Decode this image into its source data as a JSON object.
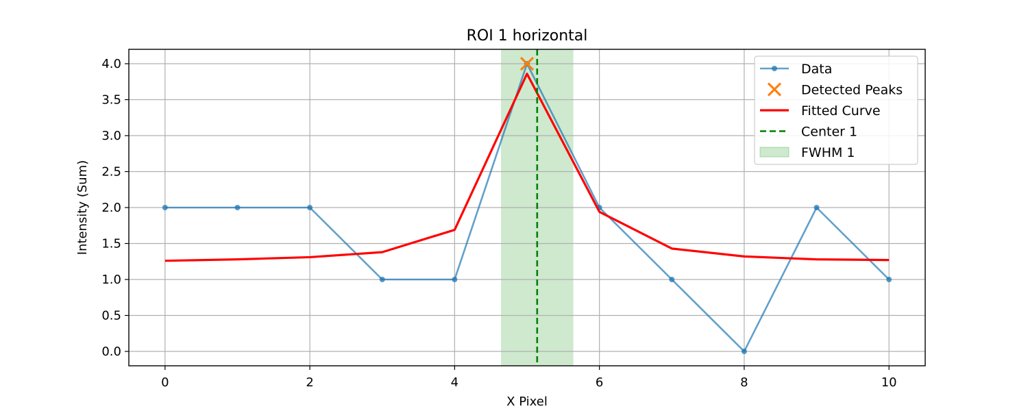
{
  "chart_data": {
    "type": "line",
    "title": "ROI 1 horizontal",
    "xlabel": "X Pixel",
    "ylabel": "Intensity (Sum)",
    "xlim": [
      -0.5,
      10.5
    ],
    "ylim": [
      -0.2,
      4.2
    ],
    "xticks": [
      0,
      2,
      4,
      6,
      8,
      10
    ],
    "xtick_labels": [
      "0",
      "2",
      "4",
      "6",
      "8",
      "10"
    ],
    "yticks": [
      0.0,
      0.5,
      1.0,
      1.5,
      2.0,
      2.5,
      3.0,
      3.5,
      4.0
    ],
    "ytick_labels": [
      "0.0",
      "0.5",
      "1.0",
      "1.5",
      "2.0",
      "2.5",
      "3.0",
      "3.5",
      "4.0"
    ],
    "grid": true,
    "legend_position": "top-right",
    "series": [
      {
        "name": "Data",
        "kind": "line-marker",
        "color": "#1f77b4",
        "x": [
          0,
          1,
          2,
          3,
          4,
          5,
          6,
          7,
          8,
          9,
          10
        ],
        "y": [
          2,
          2,
          2,
          1,
          1,
          4,
          2,
          1,
          0,
          2,
          1
        ]
      },
      {
        "name": "Detected Peaks",
        "kind": "x-marker",
        "color": "#ff7f0e",
        "x": [
          5
        ],
        "y": [
          4
        ]
      },
      {
        "name": "Fitted Curve",
        "kind": "line",
        "color": "#ff0000",
        "x": [
          0,
          1,
          2,
          3,
          4,
          5,
          6,
          7,
          8,
          9,
          10
        ],
        "y": [
          1.26,
          1.28,
          1.31,
          1.38,
          1.69,
          3.86,
          1.94,
          1.43,
          1.32,
          1.28,
          1.27
        ]
      }
    ],
    "annotations": [
      {
        "name": "Center 1",
        "kind": "vline-dashed",
        "color": "#008000",
        "x": 5.14
      },
      {
        "name": "FWHM 1",
        "kind": "vspan",
        "color": "#2ca02c",
        "x_start": 4.64,
        "x_end": 5.64
      }
    ],
    "legend": [
      "Data",
      "Detected Peaks",
      "Fitted Curve",
      "Center 1",
      "FWHM 1"
    ]
  }
}
